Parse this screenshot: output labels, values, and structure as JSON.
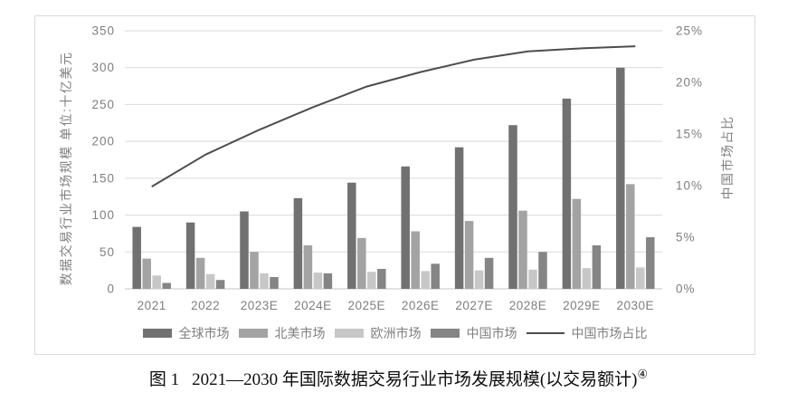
{
  "caption": {
    "label": "图 1",
    "text": "2021—2030 年国际数据交易行业市场发展规模(以交易额计)",
    "note": "④"
  },
  "chart_data": {
    "type": "bar",
    "subtype": "grouped vertical bars with secondary-axis line",
    "title": "",
    "categories": [
      "2021",
      "2022",
      "2023E",
      "2024E",
      "2025E",
      "2026E",
      "2027E",
      "2028E",
      "2029E",
      "2030E"
    ],
    "series": [
      {
        "name": "全球市场",
        "kind": "bar",
        "axis": "left",
        "color": "#717171",
        "values": [
          84,
          90,
          105,
          123,
          144,
          166,
          192,
          222,
          258,
          300
        ]
      },
      {
        "name": "北美市场",
        "kind": "bar",
        "axis": "left",
        "color": "#a3a3a3",
        "values": [
          41,
          42,
          50,
          59,
          69,
          78,
          92,
          106,
          122,
          142
        ]
      },
      {
        "name": "欧洲市场",
        "kind": "bar",
        "axis": "left",
        "color": "#c7c7c7",
        "values": [
          18,
          20,
          21,
          22,
          23,
          24,
          25,
          26,
          28,
          29
        ]
      },
      {
        "name": "中国市场",
        "kind": "bar",
        "axis": "left",
        "color": "#858585",
        "values": [
          8,
          12,
          16,
          21,
          27,
          34,
          42,
          50,
          59,
          70
        ]
      },
      {
        "name": "中国市场占比",
        "kind": "line",
        "axis": "right",
        "color": "#4d4d4d",
        "values": [
          9.9,
          13.0,
          15.4,
          17.6,
          19.6,
          21.0,
          22.2,
          23.0,
          23.3,
          23.5
        ]
      }
    ],
    "left_axis": {
      "title": "数据交易行业市场规模 单位:十亿美元",
      "min": 0,
      "max": 350,
      "step": 50
    },
    "right_axis": {
      "title": "中国市场占比",
      "min": 0,
      "max": 25,
      "step": 5,
      "format": "percent"
    },
    "grid": true,
    "legend_position": "bottom"
  },
  "colors": {
    "axis_text": "#7f7f7f",
    "gridline": "#dadada",
    "baseline": "#c4c4c4",
    "frame_border": "#d9d9d9",
    "line": "#4d4d4d"
  }
}
